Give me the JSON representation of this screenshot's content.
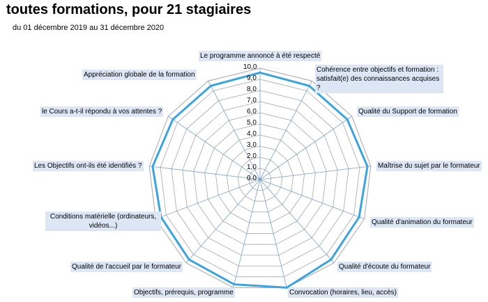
{
  "title": "toutes formations, pour 21 stagiaires",
  "subtitle": "du 01 décembre 2019 au 31 décembre 2020",
  "colors": {
    "series": "#3ba3e0",
    "grid": "#a6a6a6",
    "spoke": "#7aa0c8",
    "label_bg": "#dce6f4"
  },
  "chart_data": {
    "type": "radar",
    "title": "toutes formations, pour 21 stagiaires",
    "subtitle": "du 01 décembre 2019 au 31 décembre 2020",
    "range": [
      0,
      10
    ],
    "ticks": [
      "0,0",
      "1,0",
      "2,0",
      "3,0",
      "4,0",
      "5,0",
      "6,0",
      "7,0",
      "8,0",
      "9,0",
      "10,0"
    ],
    "grid": true,
    "categories": [
      "Le programme annoncé à été respecté",
      "Cohérence entre objectifs et formation : satisfait(e) des connaissances acquises ?",
      "Qualité du Support de formation",
      "Maîtrise du sujet par le formateur",
      "Qualité d'animation du formateur",
      "Qualité d'écoute du formateur",
      "Convocation (horaires, lieu, accès)",
      "Objectifs, prérequis, programme",
      "Qualité de l'accueil par le formateur",
      "Conditions matérielle (ordinateurs, vidéos...)",
      "Les Objectifs ont-ils été identifiés ?",
      "le Cours a-t-il répondu à vos attentes ?",
      "Appréciation globale de la formation"
    ],
    "series": [
      {
        "values": [
          9.6,
          9.5,
          9.5,
          9.7,
          9.5,
          9.6,
          10.0,
          9.7,
          9.6,
          9.5,
          9.7,
          9.5,
          9.5
        ]
      }
    ]
  }
}
